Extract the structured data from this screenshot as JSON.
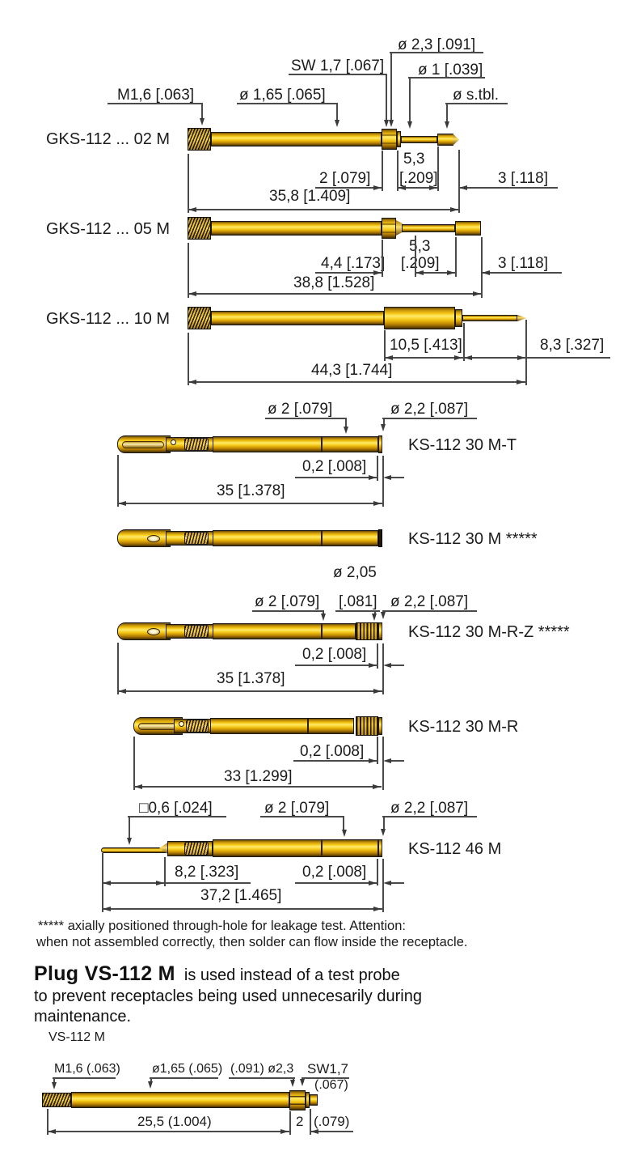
{
  "page": {
    "background": "#ffffff"
  },
  "colors": {
    "gold_main": "#f2b70a",
    "gold_highlight": "#ffe96e",
    "gold_dark": "#7c5503",
    "outline": "#1a1a1a",
    "line": "#4a4a4a",
    "text": "#1b1b1b"
  },
  "rows": [
    {
      "name": "GKS-112 ... 02 M",
      "callouts": {
        "dia23": "ø 2,3 [.091]",
        "sw": "SW 1,7 [.067]",
        "dia1": "ø 1 [.039]",
        "thread": "M1,6 [.063]",
        "dia165": "ø 1,65 [.065]",
        "dia_tbl": "ø s.tbl."
      },
      "dims": {
        "d53": "5,3",
        "d2": "2 [.079]",
        "d209": "[.209]",
        "d3": "3 [.118]",
        "total": "35,8 [1.409]"
      }
    },
    {
      "name": "GKS-112 ... 05 M",
      "dims": {
        "d53": "5,3",
        "d44": "4,4 [.173]",
        "d209": "[.209]",
        "d3": "3 [.118]",
        "total": "38,8 [1.528]"
      }
    },
    {
      "name": "GKS-112 ... 10 M",
      "dims": {
        "d105": "10,5 [.413]",
        "d83": "8,3 [.327]",
        "total": "44,3 [1.744]"
      }
    },
    {
      "name": "KS-112 30 M-T",
      "callouts": {
        "dia2": "ø 2 [.079]",
        "dia22": "ø 2,2 [.087]"
      },
      "dims": {
        "d02": "0,2 [.008]",
        "total": "35 [1.378]"
      }
    },
    {
      "name": "KS-112 30 M *****"
    },
    {
      "name": "KS-112 30 M-R-Z *****",
      "callouts": {
        "dia205": "ø 2,05",
        "dia2": "ø 2 [.079]",
        "b081": "[.081]",
        "dia22": "ø 2,2 [.087]"
      },
      "dims": {
        "d02": "0,2 [.008]",
        "total": "35 [1.378]"
      }
    },
    {
      "name": "KS-112 30 M-R",
      "dims": {
        "d02": "0,2 [.008]",
        "total": "33 [1.299]"
      }
    },
    {
      "name": "KS-112 46 M",
      "callouts": {
        "sq06": "□0,6 [.024]",
        "dia2": "ø 2 [.079]",
        "dia22": "ø 2,2 [.087]"
      },
      "dims": {
        "d82": "8,2 [.323]",
        "d02": "0,2 [.008]",
        "total": "37,2 [1.465]"
      }
    }
  ],
  "footnote": {
    "line1": "***** axially positioned through-hole for leakage test. Attention:",
    "line2": "when not assembled correctly, then solder can flow inside the receptacle."
  },
  "plug_note": {
    "lead": "Plug VS-112 M",
    "line1_rest": "is used instead of a test probe",
    "line2": "to prevent receptacles being used unnecesarily during",
    "line3": "maintenance."
  },
  "vs_drawing": {
    "caption": "VS-112 M",
    "callouts": {
      "thread": "M1,6 (.063)",
      "dia165": "ø1,65 (.065)",
      "dia23": "(.091) ø2,3",
      "sw": "SW1,7",
      "sw2": "(.067)"
    },
    "dims": {
      "total": "25,5 (1.004)",
      "d2": "2",
      "d079": "(.079)"
    }
  }
}
